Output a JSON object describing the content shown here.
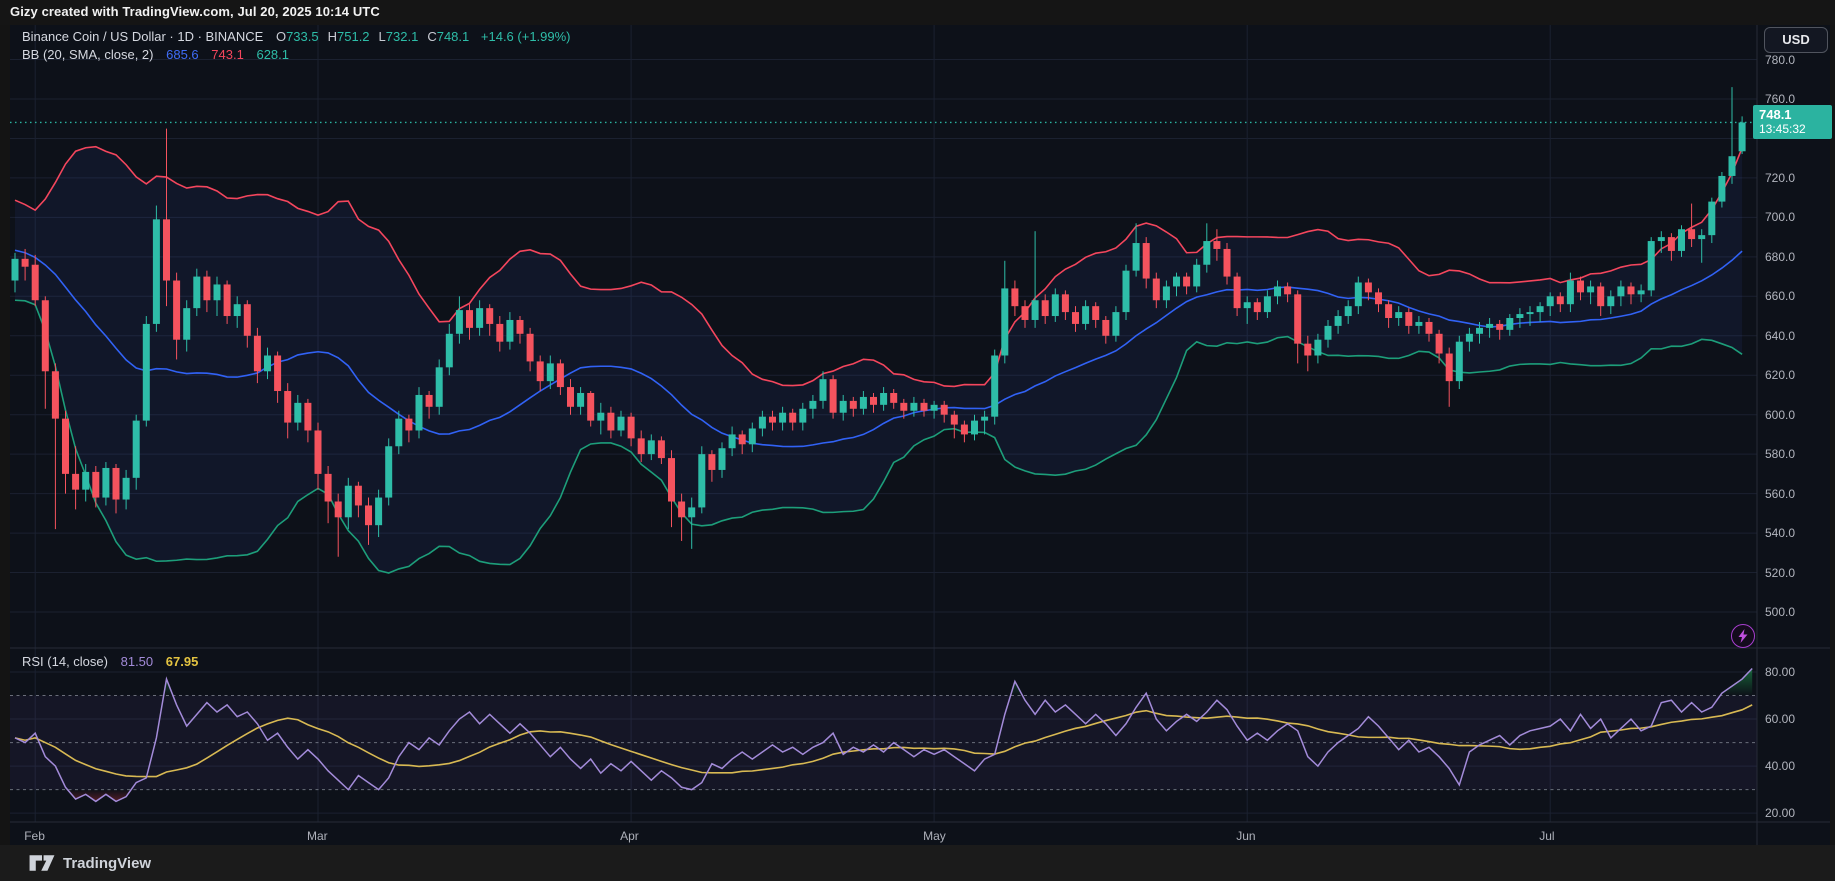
{
  "attribution": {
    "text": "Gizy created with TradingView.com, Jul 20, 2025 10:14 UTC"
  },
  "header": {
    "instrument_line": "Binance Coin / US Dollar · 1D · BINANCE",
    "ohlc": [
      {
        "label": "O",
        "value": "733.5"
      },
      {
        "label": "H",
        "value": "751.2"
      },
      {
        "label": "L",
        "value": "732.1"
      },
      {
        "label": "C",
        "value": "748.1"
      }
    ],
    "change": "+14.6 (+1.99%)"
  },
  "bb_row": {
    "label": "BB (20, SMA, close, 2)",
    "basis": "685.6",
    "upper": "743.1",
    "lower": "628.1"
  },
  "rsi_row": {
    "label": "RSI (14, close)",
    "value": "81.50",
    "ma_value": "67.95"
  },
  "price_axis": {
    "currency_button": "USD",
    "ticks": [
      780,
      760,
      720,
      700,
      680,
      660,
      640,
      620,
      600,
      580,
      560,
      540,
      520,
      500
    ],
    "last_price_label": "748.1",
    "countdown": "13:45:32"
  },
  "rsi_axis": {
    "ticks": [
      80,
      60,
      40,
      20
    ]
  },
  "watermark": {
    "logo_text": "TradingView"
  },
  "colors": {
    "up": "#2ebda8",
    "down": "#f5535e",
    "bb_upper": "#f4465d",
    "bb_basis": "#3162f5",
    "bb_lower": "#1d9e7a",
    "bb_fill": "rgba(70,115,255,0.07)",
    "rsi_line": "#a38bd9",
    "rsi_ma": "#d8b953",
    "rsi_band_fill": "rgba(126,87,194,0.08)",
    "overbought_fill": "#22c55e",
    "oversold_fill": "#f23645",
    "price_line": "#2bb3a0",
    "badge_bg": "#2bb3a0",
    "grid": "#1b2130",
    "axis_text": "#b2b5be",
    "border": "#262b38",
    "chart_bg": "#0d1119",
    "ohlc_value": "#2ebda8",
    "bolt": "#c04fe0"
  },
  "chart_data": {
    "type": "candlestick+rsi",
    "title": "Binance Coin / US Dollar daily with Bollinger Bands (20,2) and RSI (14)",
    "price_pane": {
      "ylabel": "Price (USD)",
      "ylim": [
        482,
        797
      ],
      "grid": true,
      "indicator": "Bollinger Bands (20, SMA, close, 2)",
      "pre_closes": [
        704,
        700,
        706,
        698,
        694,
        699,
        692,
        688,
        693,
        686,
        682,
        686,
        679,
        674,
        678,
        671,
        667,
        671,
        664,
        660
      ],
      "candles_format": [
        "open",
        "high",
        "low",
        "close"
      ],
      "candles": [
        [
          668,
          682,
          662,
          679
        ],
        [
          679,
          684,
          668,
          675
        ],
        [
          676,
          681,
          655,
          658
        ],
        [
          658,
          660,
          603,
          622
        ],
        [
          622,
          626,
          542,
          598
        ],
        [
          598,
          602,
          560,
          570
        ],
        [
          570,
          584,
          552,
          562
        ],
        [
          562,
          575,
          556,
          571
        ],
        [
          571,
          574,
          553,
          558
        ],
        [
          558,
          576,
          554,
          573
        ],
        [
          573,
          575,
          550,
          557
        ],
        [
          557,
          572,
          552,
          568
        ],
        [
          568,
          600,
          562,
          597
        ],
        [
          597,
          650,
          594,
          646
        ],
        [
          646,
          706,
          642,
          699
        ],
        [
          699,
          745,
          655,
          668
        ],
        [
          668,
          672,
          628,
          638
        ],
        [
          638,
          658,
          632,
          654
        ],
        [
          654,
          674,
          650,
          670
        ],
        [
          670,
          673,
          652,
          658
        ],
        [
          658,
          670,
          650,
          666
        ],
        [
          666,
          668,
          646,
          650
        ],
        [
          650,
          660,
          644,
          656
        ],
        [
          656,
          658,
          634,
          640
        ],
        [
          640,
          644,
          616,
          622
        ],
        [
          622,
          634,
          618,
          630
        ],
        [
          630,
          632,
          606,
          612
        ],
        [
          612,
          616,
          588,
          596
        ],
        [
          596,
          610,
          592,
          606
        ],
        [
          606,
          608,
          586,
          592
        ],
        [
          592,
          596,
          562,
          570
        ],
        [
          570,
          574,
          545,
          556
        ],
        [
          556,
          560,
          528,
          548
        ],
        [
          548,
          568,
          542,
          564
        ],
        [
          564,
          566,
          548,
          554
        ],
        [
          554,
          558,
          534,
          544
        ],
        [
          544,
          562,
          538,
          558
        ],
        [
          558,
          588,
          554,
          584
        ],
        [
          584,
          602,
          580,
          598
        ],
        [
          598,
          600,
          586,
          592
        ],
        [
          592,
          614,
          588,
          610
        ],
        [
          610,
          612,
          598,
          604
        ],
        [
          604,
          628,
          600,
          624
        ],
        [
          624,
          646,
          620,
          641
        ],
        [
          641,
          660,
          636,
          653
        ],
        [
          653,
          656,
          638,
          644
        ],
        [
          644,
          658,
          640,
          654
        ],
        [
          654,
          656,
          640,
          646
        ],
        [
          646,
          650,
          632,
          637
        ],
        [
          637,
          652,
          633,
          648
        ],
        [
          648,
          650,
          636,
          641
        ],
        [
          641,
          644,
          622,
          627
        ],
        [
          627,
          630,
          612,
          617
        ],
        [
          617,
          630,
          613,
          626
        ],
        [
          626,
          628,
          610,
          614
        ],
        [
          614,
          618,
          600,
          604
        ],
        [
          604,
          614,
          600,
          611
        ],
        [
          611,
          612,
          594,
          597
        ],
        [
          597,
          606,
          590,
          601
        ],
        [
          601,
          604,
          588,
          592
        ],
        [
          592,
          602,
          589,
          599
        ],
        [
          599,
          601,
          584,
          588
        ],
        [
          588,
          592,
          576,
          580
        ],
        [
          580,
          590,
          577,
          587
        ],
        [
          587,
          589,
          575,
          578
        ],
        [
          578,
          582,
          543,
          556
        ],
        [
          556,
          560,
          536,
          548
        ],
        [
          548,
          558,
          532,
          553
        ],
        [
          553,
          584,
          550,
          580
        ],
        [
          580,
          582,
          566,
          572
        ],
        [
          572,
          586,
          568,
          583
        ],
        [
          583,
          594,
          579,
          590
        ],
        [
          590,
          592,
          580,
          585
        ],
        [
          585,
          596,
          581,
          593
        ],
        [
          593,
          602,
          589,
          599
        ],
        [
          599,
          602,
          592,
          596
        ],
        [
          596,
          604,
          592,
          601
        ],
        [
          601,
          603,
          592,
          596
        ],
        [
          596,
          606,
          592,
          603
        ],
        [
          603,
          610,
          598,
          607
        ],
        [
          607,
          622,
          603,
          618
        ],
        [
          618,
          620,
          598,
          601
        ],
        [
          601,
          610,
          597,
          607
        ],
        [
          607,
          609,
          599,
          603
        ],
        [
          603,
          612,
          600,
          609
        ],
        [
          609,
          611,
          601,
          605
        ],
        [
          605,
          614,
          602,
          611
        ],
        [
          611,
          613,
          603,
          606
        ],
        [
          606,
          608,
          598,
          602
        ],
        [
          602,
          609,
          599,
          606
        ],
        [
          606,
          608,
          599,
          602
        ],
        [
          602,
          607,
          598,
          605
        ],
        [
          605,
          607,
          596,
          600
        ],
        [
          600,
          602,
          588,
          595
        ],
        [
          595,
          597,
          586,
          590
        ],
        [
          590,
          600,
          587,
          597
        ],
        [
          597,
          602,
          590,
          599
        ],
        [
          599,
          633,
          595,
          630
        ],
        [
          630,
          678,
          626,
          664
        ],
        [
          664,
          668,
          650,
          655
        ],
        [
          655,
          658,
          644,
          648
        ],
        [
          648,
          693,
          644,
          658
        ],
        [
          658,
          661,
          646,
          650
        ],
        [
          650,
          664,
          647,
          661
        ],
        [
          661,
          663,
          648,
          652
        ],
        [
          652,
          655,
          642,
          646
        ],
        [
          646,
          658,
          643,
          655
        ],
        [
          655,
          657,
          644,
          648
        ],
        [
          648,
          650,
          636,
          640
        ],
        [
          640,
          655,
          637,
          652
        ],
        [
          652,
          676,
          648,
          673
        ],
        [
          673,
          697,
          670,
          687
        ],
        [
          687,
          690,
          664,
          669
        ],
        [
          669,
          672,
          654,
          658
        ],
        [
          658,
          668,
          654,
          665
        ],
        [
          665,
          672,
          660,
          670
        ],
        [
          670,
          672,
          661,
          665
        ],
        [
          665,
          679,
          662,
          676
        ],
        [
          676,
          697,
          672,
          688
        ],
        [
          688,
          694,
          678,
          684
        ],
        [
          684,
          687,
          666,
          670
        ],
        [
          670,
          672,
          650,
          654
        ],
        [
          654,
          660,
          646,
          657
        ],
        [
          657,
          659,
          648,
          652
        ],
        [
          652,
          663,
          649,
          660
        ],
        [
          660,
          668,
          656,
          665
        ],
        [
          665,
          667,
          657,
          661
        ],
        [
          661,
          663,
          626,
          636
        ],
        [
          636,
          640,
          622,
          630
        ],
        [
          630,
          641,
          626,
          638
        ],
        [
          638,
          648,
          634,
          645
        ],
        [
          645,
          653,
          641,
          650
        ],
        [
          650,
          658,
          646,
          655
        ],
        [
          655,
          670,
          651,
          667
        ],
        [
          667,
          669,
          658,
          662
        ],
        [
          662,
          664,
          652,
          656
        ],
        [
          656,
          658,
          644,
          649
        ],
        [
          649,
          655,
          645,
          652
        ],
        [
          652,
          654,
          641,
          645
        ],
        [
          645,
          650,
          641,
          647
        ],
        [
          647,
          649,
          637,
          641
        ],
        [
          641,
          643,
          626,
          631
        ],
        [
          631,
          634,
          604,
          617
        ],
        [
          617,
          640,
          613,
          637
        ],
        [
          637,
          644,
          632,
          641
        ],
        [
          641,
          647,
          636,
          644
        ],
        [
          644,
          649,
          639,
          646
        ],
        [
          646,
          648,
          638,
          643
        ],
        [
          643,
          651,
          640,
          649
        ],
        [
          649,
          654,
          644,
          651
        ],
        [
          651,
          655,
          645,
          652
        ],
        [
          652,
          657,
          647,
          655
        ],
        [
          655,
          662,
          650,
          660
        ],
        [
          660,
          662,
          652,
          656
        ],
        [
          656,
          672,
          652,
          668
        ],
        [
          668,
          670,
          658,
          662
        ],
        [
          662,
          668,
          656,
          665
        ],
        [
          665,
          667,
          650,
          655
        ],
        [
          655,
          663,
          651,
          660
        ],
        [
          660,
          668,
          655,
          665
        ],
        [
          665,
          667,
          656,
          661
        ],
        [
          661,
          666,
          657,
          663
        ],
        [
          663,
          690,
          660,
          688
        ],
        [
          688,
          693,
          682,
          690
        ],
        [
          690,
          692,
          678,
          683
        ],
        [
          683,
          696,
          680,
          694
        ],
        [
          694,
          707,
          685,
          689
        ],
        [
          689,
          694,
          677,
          691
        ],
        [
          691,
          710,
          687,
          708
        ],
        [
          708,
          723,
          705,
          721
        ],
        [
          721,
          766,
          717,
          731
        ],
        [
          733.5,
          751.2,
          732.1,
          748.1
        ]
      ],
      "months": [
        {
          "label": "Feb",
          "index": 2
        },
        {
          "label": "Mar",
          "index": 30
        },
        {
          "label": "Apr",
          "index": 61
        },
        {
          "label": "May",
          "index": 91
        },
        {
          "label": "Jun",
          "index": 122
        },
        {
          "label": "Jul",
          "index": 152
        }
      ],
      "last_price": 748.1
    },
    "rsi_pane": {
      "ylabel": "RSI",
      "ylim": [
        16,
        90
      ],
      "levels": [
        70,
        50,
        30
      ],
      "ma_period": 14,
      "rsi": [
        52,
        50,
        54,
        44,
        40,
        31,
        26,
        28,
        25,
        28,
        25,
        27,
        33,
        35,
        52,
        77,
        66,
        57,
        62,
        67,
        63,
        66,
        61,
        63,
        58,
        51,
        54,
        48,
        43,
        47,
        43,
        38,
        34,
        30,
        36,
        33,
        30,
        35,
        44,
        50,
        47,
        52,
        49,
        55,
        60,
        63,
        58,
        62,
        58,
        54,
        58,
        54,
        49,
        44,
        48,
        43,
        39,
        43,
        37,
        41,
        38,
        42,
        38,
        34,
        38,
        35,
        31,
        30,
        33,
        41,
        39,
        43,
        46,
        43,
        46,
        49,
        46,
        48,
        45,
        48,
        50,
        54,
        45,
        48,
        46,
        49,
        46,
        50,
        47,
        44,
        47,
        45,
        47,
        44,
        41,
        38,
        43,
        45,
        62,
        76,
        68,
        62,
        68,
        63,
        66,
        62,
        58,
        62,
        58,
        53,
        58,
        65,
        71,
        60,
        55,
        59,
        62,
        59,
        63,
        68,
        64,
        57,
        51,
        54,
        51,
        55,
        58,
        55,
        44,
        40,
        46,
        50,
        53,
        56,
        61,
        57,
        52,
        47,
        51,
        46,
        48,
        44,
        39,
        32,
        46,
        49,
        51,
        53,
        49,
        53,
        55,
        56,
        57,
        60,
        55,
        62,
        56,
        60,
        52,
        56,
        60,
        55,
        57,
        67,
        68,
        63,
        67,
        63,
        65,
        71,
        74,
        77,
        81.5
      ]
    }
  }
}
